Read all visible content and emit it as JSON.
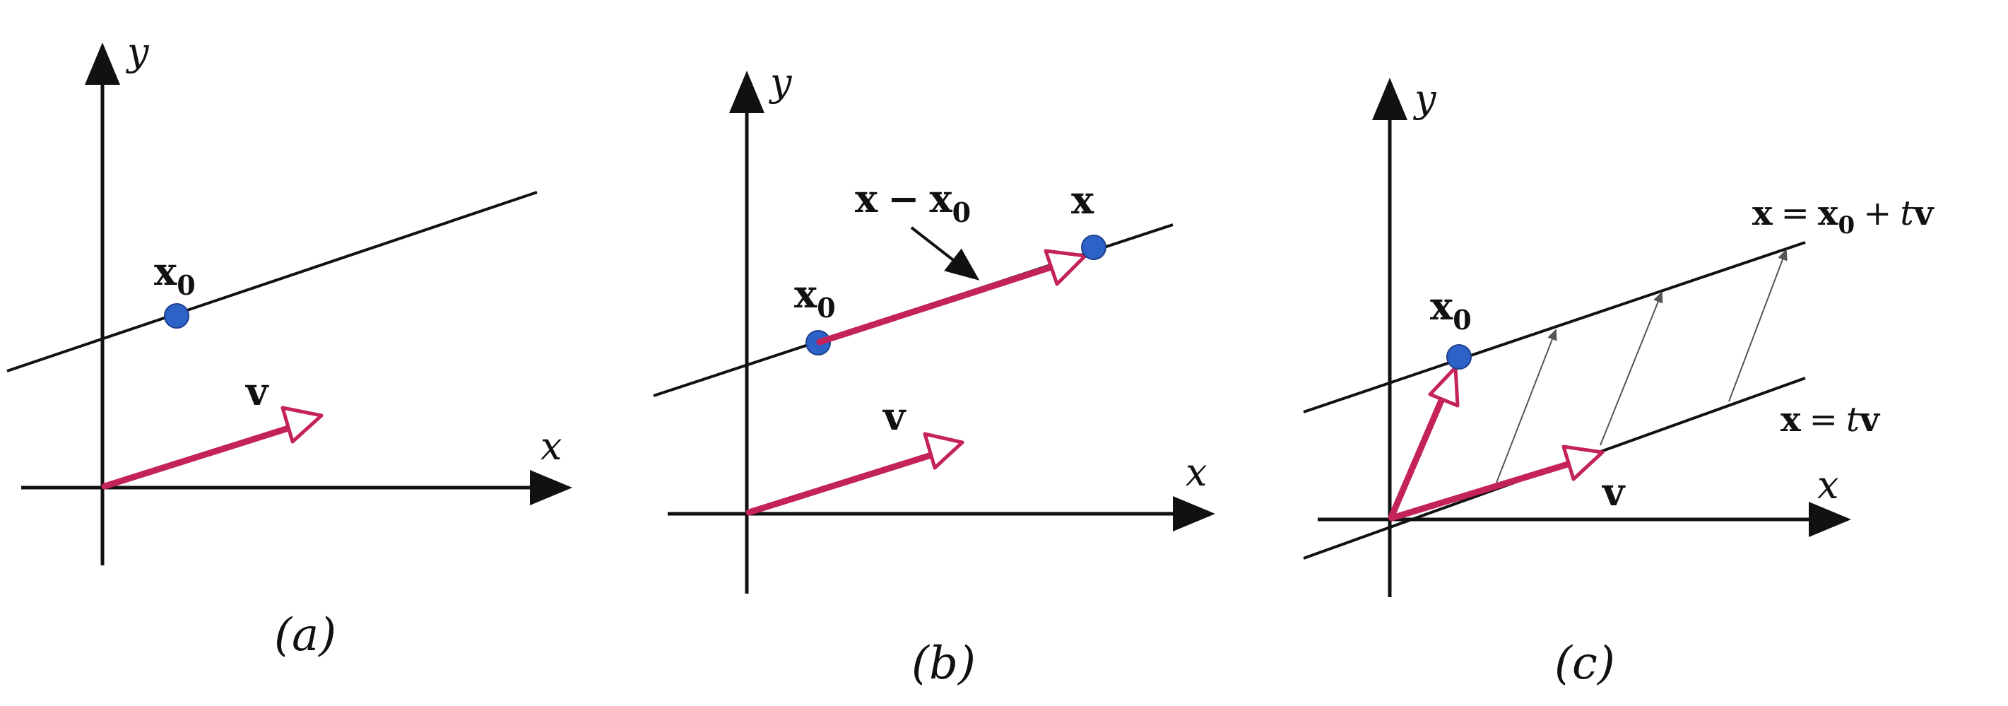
{
  "axis_labels": {
    "x": "x",
    "y": "y"
  },
  "colors": {
    "vector": "#c4225a",
    "point": "#2d63c8",
    "axes": "#111111"
  },
  "panels": [
    {
      "caption": "(a)",
      "point_label": {
        "base": "x",
        "sub": "0"
      },
      "vector_label": "v"
    },
    {
      "caption": "(b)",
      "point_label": {
        "base": "x",
        "sub": "0"
      },
      "end_point_label": "x",
      "difference_label": {
        "left": "x",
        "op": "−",
        "right": "x",
        "right_sub": "0"
      },
      "vector_label": "v"
    },
    {
      "caption": "(c)",
      "point_label": {
        "base": "x",
        "sub": "0"
      },
      "vector_label": "v",
      "upper_line_label": {
        "lhs": "x",
        "eq": "=",
        "base": "x",
        "sub": "0",
        "plus": "+",
        "param": "t",
        "vec": "v"
      },
      "lower_line_label": {
        "lhs": "x",
        "eq": "=",
        "param": "t",
        "vec": "v"
      }
    }
  ]
}
